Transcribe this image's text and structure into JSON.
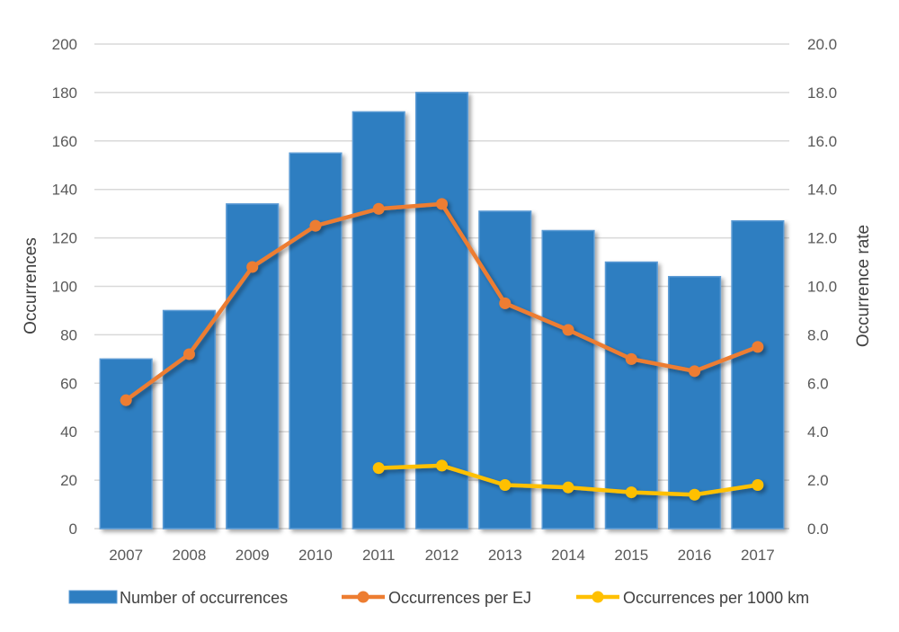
{
  "chart_data": {
    "type": "bar",
    "title": "",
    "categories": [
      "2007",
      "2008",
      "2009",
      "2010",
      "2011",
      "2012",
      "2013",
      "2014",
      "2015",
      "2016",
      "2017"
    ],
    "series": [
      {
        "name": "Number of occurrences",
        "type": "bar",
        "axis": "left",
        "color": "#2E7EC1",
        "values": [
          70,
          90,
          134,
          155,
          172,
          180,
          131,
          123,
          110,
          104,
          127
        ]
      },
      {
        "name": "Occurrences per EJ",
        "type": "line",
        "axis": "right",
        "color": "#ED7D31",
        "values": [
          5.3,
          7.2,
          10.8,
          12.5,
          13.2,
          13.4,
          9.3,
          8.2,
          7.0,
          6.5,
          7.5
        ]
      },
      {
        "name": "Occurrences per 1000 km",
        "type": "line",
        "axis": "right",
        "color": "#FFC000",
        "values": [
          null,
          null,
          null,
          null,
          2.5,
          2.6,
          1.8,
          1.7,
          1.5,
          1.4,
          1.8
        ]
      }
    ],
    "ylabel": "Occurrences",
    "y2label": "Occurrence rate",
    "xlabel": "",
    "ylim": [
      0,
      200
    ],
    "y2lim": [
      0,
      20
    ],
    "yticks": [
      "0",
      "20",
      "40",
      "60",
      "80",
      "100",
      "120",
      "140",
      "160",
      "180",
      "200"
    ],
    "y2ticks": [
      "0.0",
      "2.0",
      "4.0",
      "6.0",
      "8.0",
      "10.0",
      "12.0",
      "14.0",
      "16.0",
      "18.0",
      "20.0"
    ],
    "grid": true,
    "legend_position": "bottom"
  }
}
